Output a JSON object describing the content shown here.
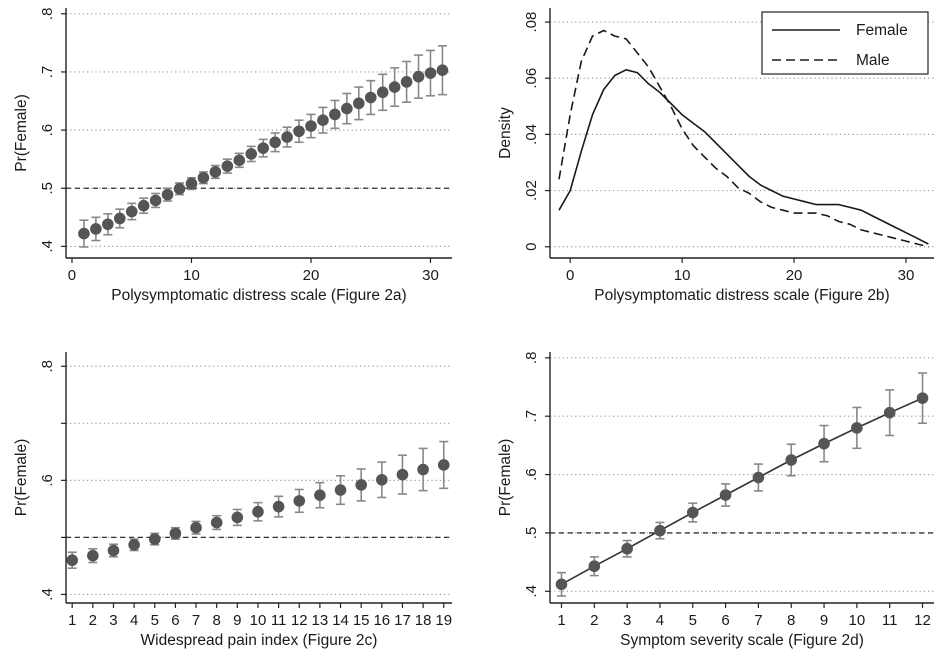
{
  "chart_data": [
    {
      "id": "fig2a",
      "type": "scatter",
      "style": "points_with_error_bars",
      "xlabel": "Polysymptomatic distress scale (Figure 2a)",
      "ylabel": "Pr(Female)",
      "xlim": [
        -0.5,
        31.8
      ],
      "ylim": [
        0.38,
        0.81
      ],
      "xticks": [
        0,
        10,
        20,
        30
      ],
      "xtick_labels": [
        "0",
        "10",
        "20",
        "30"
      ],
      "yticks": [
        0.4,
        0.5,
        0.6,
        0.7,
        0.8
      ],
      "ytick_labels": [
        ".4",
        ".5",
        ".6",
        ".7",
        ".8"
      ],
      "grid": "horizontal dotted",
      "reference_line": 0.5,
      "connect_points": false,
      "colors": {
        "marker": "#555555",
        "error_bar": "#888888"
      },
      "x": [
        1,
        2,
        3,
        4,
        5,
        6,
        7,
        8,
        9,
        10,
        11,
        12,
        13,
        14,
        15,
        16,
        17,
        18,
        19,
        20,
        21,
        22,
        23,
        24,
        25,
        26,
        27,
        28,
        29,
        30,
        31
      ],
      "y": [
        0.422,
        0.43,
        0.438,
        0.448,
        0.46,
        0.47,
        0.479,
        0.489,
        0.499,
        0.508,
        0.518,
        0.528,
        0.538,
        0.548,
        0.559,
        0.569,
        0.579,
        0.588,
        0.598,
        0.607,
        0.617,
        0.627,
        0.637,
        0.646,
        0.656,
        0.665,
        0.674,
        0.683,
        0.692,
        0.698,
        0.703
      ],
      "err": [
        0.023,
        0.02,
        0.018,
        0.016,
        0.014,
        0.013,
        0.012,
        0.011,
        0.01,
        0.01,
        0.01,
        0.011,
        0.012,
        0.012,
        0.013,
        0.015,
        0.016,
        0.017,
        0.019,
        0.02,
        0.022,
        0.024,
        0.026,
        0.028,
        0.029,
        0.031,
        0.033,
        0.035,
        0.037,
        0.039,
        0.042
      ]
    },
    {
      "id": "fig2b",
      "type": "line",
      "xlabel": "Polysymptomatic distress scale (Figure 2b)",
      "ylabel": "Density",
      "xlim": [
        -1.8,
        32.5
      ],
      "ylim": [
        -0.004,
        0.085
      ],
      "xticks": [
        0,
        10,
        20,
        30
      ],
      "xtick_labels": [
        "0",
        "10",
        "20",
        "30"
      ],
      "yticks": [
        0,
        0.02,
        0.04,
        0.06,
        0.08
      ],
      "ytick_labels": [
        "0",
        ".02",
        ".04",
        ".06",
        ".08"
      ],
      "grid": "horizontal dotted",
      "legend": {
        "position": "top-right"
      },
      "series": [
        {
          "name": "Female",
          "dash": "solid",
          "x": [
            -1,
            0,
            1,
            2,
            3,
            4,
            5,
            6,
            7,
            8,
            9,
            10,
            11,
            12,
            13,
            14,
            15,
            16,
            17,
            18,
            19,
            20,
            21,
            22,
            23,
            24,
            25,
            26,
            27,
            28,
            29,
            30,
            31,
            32
          ],
          "y": [
            0.013,
            0.02,
            0.034,
            0.047,
            0.056,
            0.061,
            0.063,
            0.062,
            0.058,
            0.055,
            0.051,
            0.047,
            0.044,
            0.041,
            0.037,
            0.033,
            0.029,
            0.025,
            0.022,
            0.02,
            0.018,
            0.017,
            0.016,
            0.015,
            0.015,
            0.015,
            0.014,
            0.013,
            0.011,
            0.009,
            0.007,
            0.005,
            0.003,
            0.001
          ]
        },
        {
          "name": "Male",
          "dash": "dashed",
          "x": [
            -1,
            0,
            1,
            2,
            3,
            4,
            5,
            6,
            7,
            8,
            9,
            10,
            11,
            12,
            13,
            14,
            15,
            16,
            17,
            18,
            19,
            20,
            21,
            22,
            23,
            24,
            25,
            26,
            27,
            28,
            29,
            30,
            31,
            32
          ],
          "y": [
            0.024,
            0.047,
            0.066,
            0.075,
            0.077,
            0.075,
            0.074,
            0.069,
            0.064,
            0.057,
            0.05,
            0.042,
            0.036,
            0.032,
            0.028,
            0.025,
            0.021,
            0.019,
            0.016,
            0.014,
            0.013,
            0.012,
            0.012,
            0.012,
            0.011,
            0.009,
            0.008,
            0.006,
            0.005,
            0.004,
            0.003,
            0.002,
            0.001,
            0.0
          ]
        }
      ]
    },
    {
      "id": "fig2c",
      "type": "scatter",
      "style": "points_with_error_bars",
      "xlabel": "Widespread pain index (Figure 2c)",
      "ylabel": "Pr(Female)",
      "xlim": [
        0.7,
        19.4
      ],
      "ylim": [
        0.385,
        0.825
      ],
      "xticks": [
        1,
        2,
        3,
        4,
        5,
        6,
        7,
        8,
        9,
        10,
        11,
        12,
        13,
        14,
        15,
        16,
        17,
        18,
        19
      ],
      "xtick_labels": [
        "1",
        "2",
        "3",
        "4",
        "5",
        "6",
        "7",
        "8",
        "9",
        "10",
        "11",
        "12",
        "13",
        "14",
        "15",
        "16",
        "17",
        "18",
        "19"
      ],
      "yticks": [
        0.4,
        0.5,
        0.6,
        0.7,
        0.8
      ],
      "ytick_labels": [
        ".4",
        "",
        ".6",
        "",
        ".8"
      ],
      "grid": "horizontal dotted",
      "reference_line": 0.5,
      "connect_points": false,
      "colors": {
        "marker": "#555555",
        "error_bar": "#888888"
      },
      "x": [
        1,
        2,
        3,
        4,
        5,
        6,
        7,
        8,
        9,
        10,
        11,
        12,
        13,
        14,
        15,
        16,
        17,
        18,
        19
      ],
      "y": [
        0.46,
        0.468,
        0.477,
        0.487,
        0.497,
        0.507,
        0.517,
        0.526,
        0.535,
        0.545,
        0.554,
        0.564,
        0.574,
        0.583,
        0.592,
        0.601,
        0.61,
        0.619,
        0.627
      ],
      "err": [
        0.014,
        0.012,
        0.011,
        0.01,
        0.01,
        0.01,
        0.011,
        0.012,
        0.014,
        0.016,
        0.018,
        0.02,
        0.022,
        0.025,
        0.028,
        0.031,
        0.034,
        0.037,
        0.041
      ]
    },
    {
      "id": "fig2d",
      "type": "line",
      "style": "points_with_error_bars",
      "xlabel": "Symptom severity scale (Figure 2d)",
      "ylabel": "Pr(Female)",
      "xlim": [
        0.65,
        12.35
      ],
      "ylim": [
        0.38,
        0.81
      ],
      "xticks": [
        1,
        2,
        3,
        4,
        5,
        6,
        7,
        8,
        9,
        10,
        11,
        12
      ],
      "xtick_labels": [
        "1",
        "2",
        "3",
        "4",
        "5",
        "6",
        "7",
        "8",
        "9",
        "10",
        "11",
        "12"
      ],
      "yticks": [
        0.4,
        0.5,
        0.6,
        0.7,
        0.8
      ],
      "ytick_labels": [
        ".4",
        ".5",
        ".6",
        ".7",
        ".8"
      ],
      "grid": "horizontal dotted",
      "reference_line": 0.5,
      "connect_points": true,
      "colors": {
        "marker": "#555555",
        "error_bar": "#888888"
      },
      "x": [
        1,
        2,
        3,
        4,
        5,
        6,
        7,
        8,
        9,
        10,
        11,
        12
      ],
      "y": [
        0.412,
        0.443,
        0.473,
        0.504,
        0.535,
        0.565,
        0.595,
        0.625,
        0.653,
        0.68,
        0.706,
        0.731
      ],
      "err": [
        0.02,
        0.016,
        0.014,
        0.014,
        0.016,
        0.019,
        0.023,
        0.027,
        0.031,
        0.035,
        0.039,
        0.043
      ]
    }
  ]
}
